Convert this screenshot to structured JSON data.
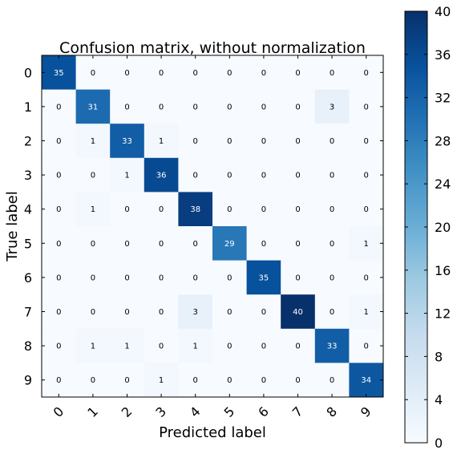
{
  "chart_data": {
    "type": "heatmap",
    "title": "Confusion matrix, without normalization",
    "xlabel": "Predicted label",
    "ylabel": "True label",
    "x_tick_labels": [
      "0",
      "1",
      "2",
      "3",
      "4",
      "5",
      "6",
      "7",
      "8",
      "9"
    ],
    "y_tick_labels": [
      "0",
      "1",
      "2",
      "3",
      "4",
      "5",
      "6",
      "7",
      "8",
      "9"
    ],
    "matrix": [
      [
        35,
        0,
        0,
        0,
        0,
        0,
        0,
        0,
        0,
        0
      ],
      [
        0,
        31,
        0,
        0,
        0,
        0,
        0,
        0,
        3,
        0
      ],
      [
        0,
        1,
        33,
        1,
        0,
        0,
        0,
        0,
        0,
        0
      ],
      [
        0,
        0,
        1,
        36,
        0,
        0,
        0,
        0,
        0,
        0
      ],
      [
        0,
        1,
        0,
        0,
        38,
        0,
        0,
        0,
        0,
        0
      ],
      [
        0,
        0,
        0,
        0,
        0,
        29,
        0,
        0,
        0,
        1
      ],
      [
        0,
        0,
        0,
        0,
        0,
        0,
        35,
        0,
        0,
        0
      ],
      [
        0,
        0,
        0,
        0,
        3,
        0,
        0,
        40,
        0,
        1
      ],
      [
        0,
        1,
        1,
        0,
        1,
        0,
        0,
        0,
        33,
        0
      ],
      [
        0,
        0,
        0,
        1,
        0,
        0,
        0,
        0,
        0,
        34
      ]
    ],
    "colorbar": {
      "min": 0,
      "max": 40,
      "ticks": [
        "0",
        "4",
        "8",
        "12",
        "16",
        "20",
        "24",
        "28",
        "32",
        "36",
        "40"
      ]
    },
    "colormap": "Blues",
    "text_threshold": 20,
    "text_color_dark": "#000000",
    "text_color_light": "#ffffff",
    "grid": false
  }
}
